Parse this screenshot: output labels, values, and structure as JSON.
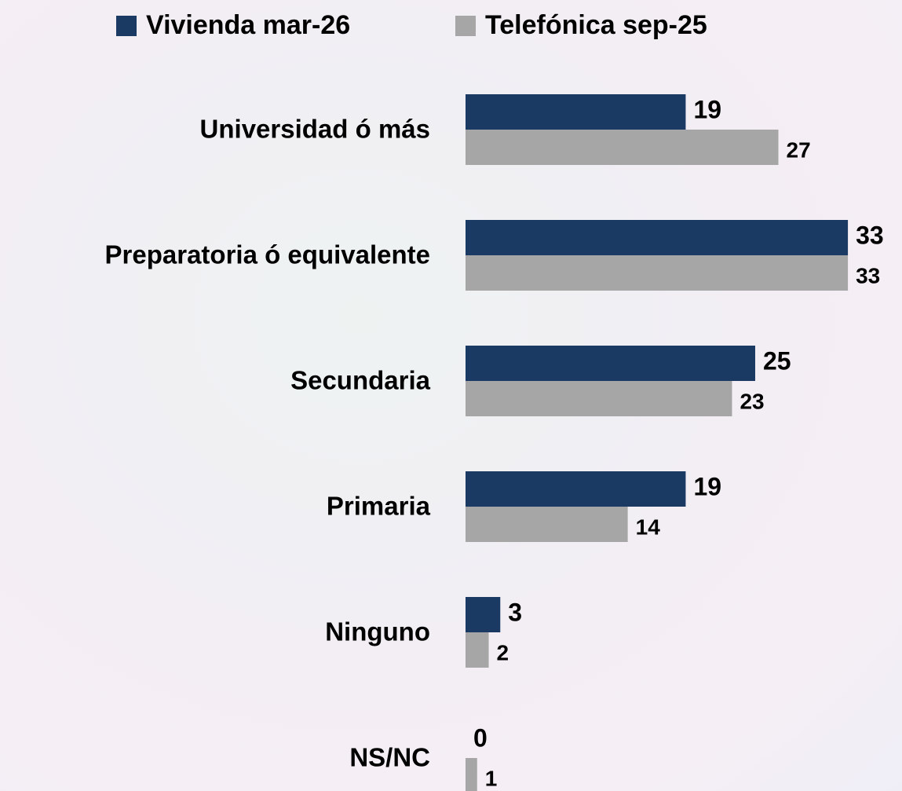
{
  "chart_data": {
    "type": "bar",
    "orientation": "horizontal",
    "categories": [
      "Universidad ó más",
      "Preparatoria ó equivalente",
      "Secundaria",
      "Primaria",
      "Ninguno",
      "NS/NC"
    ],
    "series": [
      {
        "name": "Vivienda mar-26",
        "color": "#1b3a63",
        "values": [
          19,
          33,
          25,
          19,
          3,
          0
        ]
      },
      {
        "name": "Telefónica sep-25",
        "color": "#a6a6a6",
        "values": [
          27,
          33,
          23,
          14,
          2,
          1
        ]
      }
    ]
  }
}
